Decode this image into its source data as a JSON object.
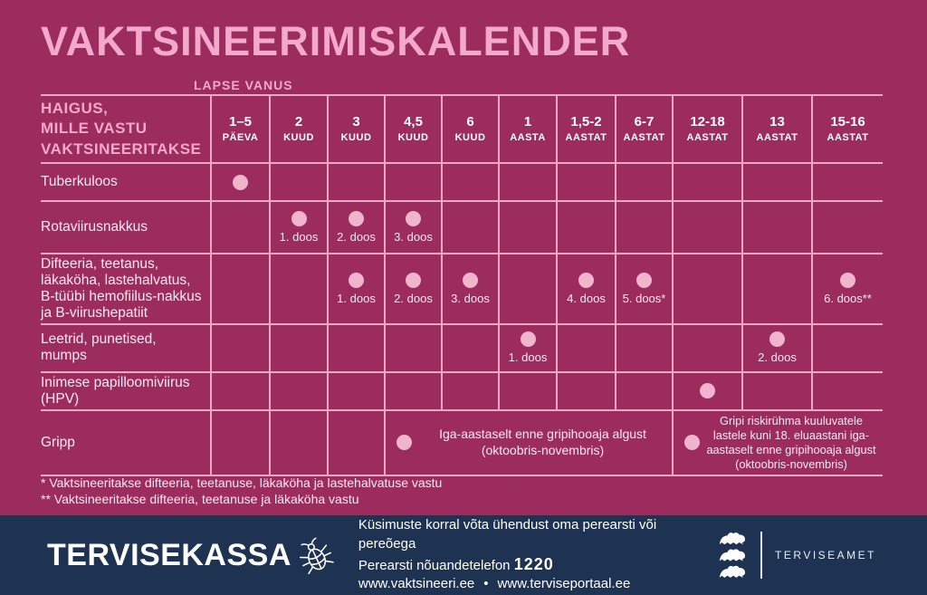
{
  "colors": {
    "bg": "#9C2B5E",
    "pink": "#F3A9CA",
    "dot": "#F0B4CD",
    "line": "#E9A8C6",
    "text-light": "#FBE9F3",
    "white": "#FFFFFF",
    "footer-bg": "#1E3251"
  },
  "chart_data": {
    "type": "table",
    "title": "VAKTSINEERIMISKALENDER",
    "age_axis_label": "LAPSE VANUS",
    "row_header_lines": [
      "HAIGUS,",
      "MILLE VASTU",
      "VAKTSINEERITAKSE"
    ],
    "columns": [
      {
        "value": "1–5",
        "unit": "PÄEVA"
      },
      {
        "value": "2",
        "unit": "KUUD"
      },
      {
        "value": "3",
        "unit": "KUUD"
      },
      {
        "value": "4,5",
        "unit": "KUUD"
      },
      {
        "value": "6",
        "unit": "KUUD"
      },
      {
        "value": "1",
        "unit": "AASTA"
      },
      {
        "value": "1,5-2",
        "unit": "AASTAT"
      },
      {
        "value": "6-7",
        "unit": "AASTAT"
      },
      {
        "value": "12-18",
        "unit": "AASTAT"
      },
      {
        "value": "13",
        "unit": "AASTAT"
      },
      {
        "value": "15-16",
        "unit": "AASTAT"
      }
    ],
    "rows": [
      {
        "disease": "Tuberkuloos",
        "marks": [
          {
            "col": 0,
            "label": ""
          }
        ]
      },
      {
        "disease": "Rotaviirusnakkus",
        "marks": [
          {
            "col": 1,
            "label": "1. doos"
          },
          {
            "col": 2,
            "label": "2. doos"
          },
          {
            "col": 3,
            "label": "3. doos"
          }
        ]
      },
      {
        "disease": "Difteeria, teetanus, läkaköha, lastehalvatus, B-tüübi hemofiilus-nakkus ja B-viirushepatiit",
        "marks": [
          {
            "col": 2,
            "label": "1. doos"
          },
          {
            "col": 3,
            "label": "2. doos"
          },
          {
            "col": 4,
            "label": "3. doos"
          },
          {
            "col": 6,
            "label": "4. doos"
          },
          {
            "col": 7,
            "label": "5. doos*"
          },
          {
            "col": 10,
            "label": "6. doos**"
          }
        ]
      },
      {
        "disease": "Leetrid, punetised, mumps",
        "marks": [
          {
            "col": 5,
            "label": "1. doos"
          },
          {
            "col": 9,
            "label": "2. doos"
          }
        ]
      },
      {
        "disease": "Inimese papilloomiviirus (HPV)",
        "marks": [
          {
            "col": 8,
            "label": ""
          }
        ]
      },
      {
        "disease": "Gripp",
        "empty_cols": 3,
        "spans": [
          {
            "colspan": 5,
            "text": "Iga-aastaselt enne gripihooaja algust (oktoobris-novembris)"
          },
          {
            "colspan": 3,
            "text": "Gripi riskirühma kuuluvatele lastele kuni 18. eluaastani iga-aastaselt enne gripihooaja algust (oktoobris-novembris)"
          }
        ]
      }
    ]
  },
  "footnotes": [
    "* Vaktsineeritakse difteeria, teetanuse, läkaköha ja lastehalvatuse vastu",
    "** Vaktsineeritakse difteeria, teetanuse ja läkaköha vastu"
  ],
  "footer": {
    "brand": "TERVISEKASSA",
    "contact_line": "Küsimuste korral võta ühendust oma perearsti või pereõega",
    "phone_line_prefix": "Perearsti nõuandetelefon ",
    "phone_number": "1220",
    "url1": "www.vaktsineeri.ee",
    "separator": "•",
    "url2": "www.terviseportaal.ee",
    "agency": "TERVISEAMET"
  }
}
